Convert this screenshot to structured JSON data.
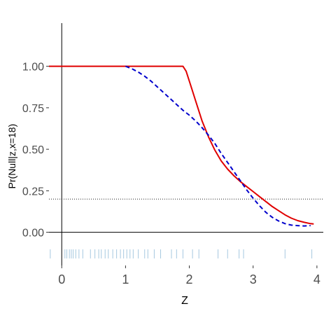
{
  "chart_data": {
    "type": "line",
    "title": "",
    "xlabel": "Z",
    "ylabel": "Pr(Null|z,x=18)",
    "xlim": [
      -0.2,
      4.1
    ],
    "ylim": [
      -0.2,
      1.26
    ],
    "grid": false,
    "legend": "none",
    "x_ticks": [
      {
        "value": 0,
        "label": "0"
      },
      {
        "value": 1,
        "label": "1"
      },
      {
        "value": 2,
        "label": "2"
      },
      {
        "value": 3,
        "label": "3"
      },
      {
        "value": 4,
        "label": "4"
      }
    ],
    "y_ticks": [
      {
        "value": 0,
        "label": "0.00"
      },
      {
        "value": 0.25,
        "label": "0.25"
      },
      {
        "value": 0.5,
        "label": "0.50"
      },
      {
        "value": 0.75,
        "label": "0.75"
      },
      {
        "value": 1,
        "label": "1.00"
      }
    ],
    "series": [
      {
        "style": "solid",
        "color": "#e00000",
        "points": [
          [
            -0.2,
            1.0
          ],
          [
            0.0,
            1.0
          ],
          [
            0.5,
            1.0
          ],
          [
            1.0,
            1.0
          ],
          [
            1.5,
            1.0
          ],
          [
            1.9,
            1.0
          ],
          [
            1.95,
            0.97
          ],
          [
            2.0,
            0.91
          ],
          [
            2.1,
            0.79
          ],
          [
            2.2,
            0.67
          ],
          [
            2.3,
            0.575
          ],
          [
            2.4,
            0.495
          ],
          [
            2.5,
            0.43
          ],
          [
            2.6,
            0.38
          ],
          [
            2.7,
            0.34
          ],
          [
            2.8,
            0.305
          ],
          [
            2.9,
            0.275
          ],
          [
            3.0,
            0.245
          ],
          [
            3.1,
            0.215
          ],
          [
            3.2,
            0.185
          ],
          [
            3.3,
            0.155
          ],
          [
            3.4,
            0.13
          ],
          [
            3.5,
            0.105
          ],
          [
            3.6,
            0.085
          ],
          [
            3.7,
            0.07
          ],
          [
            3.8,
            0.06
          ],
          [
            3.9,
            0.052
          ],
          [
            3.95,
            0.05
          ]
        ]
      },
      {
        "style": "dashed",
        "color": "#0000cc",
        "points": [
          [
            1.0,
            1.0
          ],
          [
            1.1,
            0.985
          ],
          [
            1.2,
            0.965
          ],
          [
            1.3,
            0.94
          ],
          [
            1.4,
            0.91
          ],
          [
            1.5,
            0.875
          ],
          [
            1.6,
            0.84
          ],
          [
            1.7,
            0.805
          ],
          [
            1.8,
            0.77
          ],
          [
            1.9,
            0.735
          ],
          [
            2.0,
            0.705
          ],
          [
            2.1,
            0.67
          ],
          [
            2.2,
            0.63
          ],
          [
            2.3,
            0.585
          ],
          [
            2.4,
            0.535
          ],
          [
            2.5,
            0.475
          ],
          [
            2.6,
            0.42
          ],
          [
            2.7,
            0.365
          ],
          [
            2.8,
            0.31
          ],
          [
            2.9,
            0.255
          ],
          [
            3.0,
            0.205
          ],
          [
            3.1,
            0.16
          ],
          [
            3.2,
            0.12
          ],
          [
            3.3,
            0.09
          ],
          [
            3.4,
            0.068
          ],
          [
            3.5,
            0.052
          ],
          [
            3.6,
            0.043
          ],
          [
            3.7,
            0.04
          ],
          [
            3.8,
            0.038
          ],
          [
            3.9,
            0.04
          ]
        ]
      }
    ],
    "reference_lines": [
      {
        "orientation": "horizontal",
        "value": 0.2,
        "style": "dotted",
        "color": "#000000"
      }
    ],
    "rug": {
      "color": "#a6c8e0",
      "values": [
        -0.18,
        0.05,
        0.08,
        0.12,
        0.15,
        0.18,
        0.22,
        0.27,
        0.33,
        0.45,
        0.52,
        0.58,
        0.62,
        0.68,
        0.73,
        0.8,
        0.86,
        0.92,
        0.97,
        1.02,
        1.07,
        1.12,
        1.2,
        1.3,
        1.35,
        1.45,
        1.55,
        1.72,
        1.8,
        1.9,
        2.05,
        2.15,
        2.45,
        2.6,
        2.78,
        2.85,
        3.5,
        3.92
      ]
    }
  }
}
